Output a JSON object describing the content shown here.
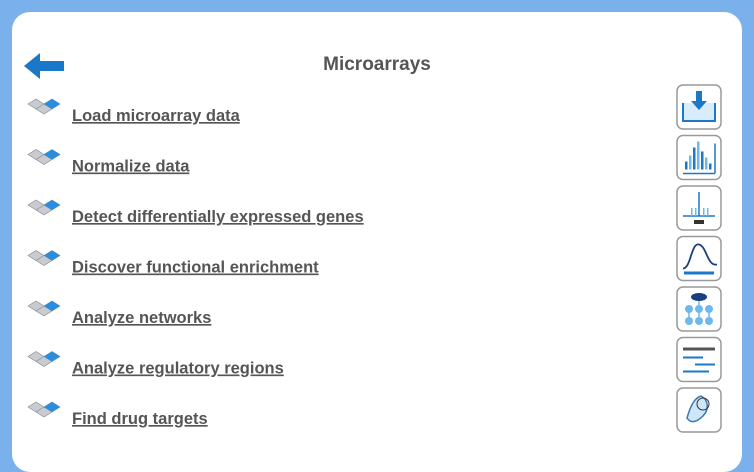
{
  "header": {
    "title": "Microarrays"
  },
  "menu": {
    "items": [
      {
        "label": "Load microarray data"
      },
      {
        "label": "Normalize data"
      },
      {
        "label": "Detect differentially expressed genes"
      },
      {
        "label": "Discover functional enrichment"
      },
      {
        "label": "Analyze networks"
      },
      {
        "label": "Analyze regulatory regions"
      },
      {
        "label": "Find drug targets"
      }
    ]
  }
}
